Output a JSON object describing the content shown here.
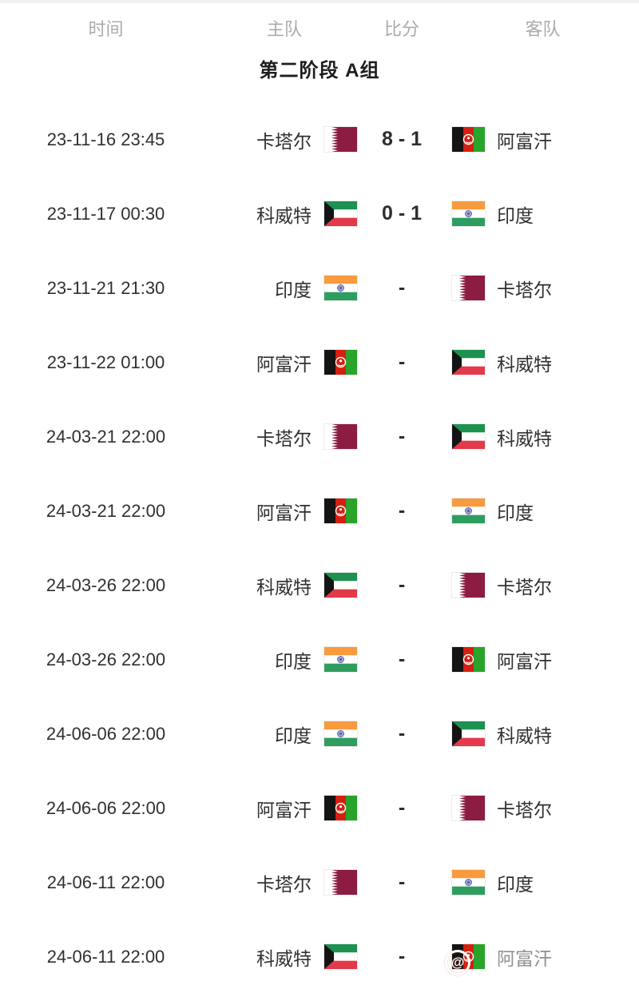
{
  "header": {
    "time": "时间",
    "home": "主队",
    "score": "比分",
    "away": "客队"
  },
  "section_title": "第二阶段 A组",
  "colors": {
    "row_text": "#303033",
    "header_text": "#a9abae",
    "title_text": "#1d1d1f",
    "score_text": "#2e2e30",
    "muted_text": "#909094"
  },
  "flags": {
    "qatar": {
      "maroon": "#8c1c42",
      "white": "#ffffff"
    },
    "afghanistan": {
      "black": "#141414",
      "red": "#d32011",
      "green": "#2aa32a",
      "emblem": "#ffffff"
    },
    "kuwait": {
      "green": "#1d9150",
      "white": "#ffffff",
      "red": "#e23a4b",
      "black": "#141414"
    },
    "india": {
      "saffron": "#f89a3e",
      "white": "#ffffff",
      "green": "#2f9d5f",
      "chakra": "#3b4ba0"
    }
  },
  "watermark_glyph": "@",
  "matches": [
    {
      "time": "23-11-16 23:45",
      "home": "卡塔尔",
      "home_flag": "qatar",
      "score": "8 - 1",
      "away": "阿富汗",
      "away_flag": "afghanistan",
      "watermark": false
    },
    {
      "time": "23-11-17 00:30",
      "home": "科威特",
      "home_flag": "kuwait",
      "score": "0 - 1",
      "away": "印度",
      "away_flag": "india",
      "watermark": false
    },
    {
      "time": "23-11-21 21:30",
      "home": "印度",
      "home_flag": "india",
      "score": "-",
      "away": "卡塔尔",
      "away_flag": "qatar",
      "watermark": false
    },
    {
      "time": "23-11-22 01:00",
      "home": "阿富汗",
      "home_flag": "afghanistan",
      "score": "-",
      "away": "科威特",
      "away_flag": "kuwait",
      "watermark": false
    },
    {
      "time": "24-03-21 22:00",
      "home": "卡塔尔",
      "home_flag": "qatar",
      "score": "-",
      "away": "科威特",
      "away_flag": "kuwait",
      "watermark": false
    },
    {
      "time": "24-03-21 22:00",
      "home": "阿富汗",
      "home_flag": "afghanistan",
      "score": "-",
      "away": "印度",
      "away_flag": "india",
      "watermark": false
    },
    {
      "time": "24-03-26 22:00",
      "home": "科威特",
      "home_flag": "kuwait",
      "score": "-",
      "away": "卡塔尔",
      "away_flag": "qatar",
      "watermark": false
    },
    {
      "time": "24-03-26 22:00",
      "home": "印度",
      "home_flag": "india",
      "score": "-",
      "away": "阿富汗",
      "away_flag": "afghanistan",
      "watermark": false
    },
    {
      "time": "24-06-06 22:00",
      "home": "印度",
      "home_flag": "india",
      "score": "-",
      "away": "科威特",
      "away_flag": "kuwait",
      "watermark": false
    },
    {
      "time": "24-06-06 22:00",
      "home": "阿富汗",
      "home_flag": "afghanistan",
      "score": "-",
      "away": "卡塔尔",
      "away_flag": "qatar",
      "watermark": false
    },
    {
      "time": "24-06-11 22:00",
      "home": "卡塔尔",
      "home_flag": "qatar",
      "score": "-",
      "away": "印度",
      "away_flag": "india",
      "watermark": false
    },
    {
      "time": "24-06-11 22:00",
      "home": "科威特",
      "home_flag": "kuwait",
      "score": "-",
      "away": "阿富汗",
      "away_flag": "afghanistan",
      "watermark": true
    }
  ]
}
